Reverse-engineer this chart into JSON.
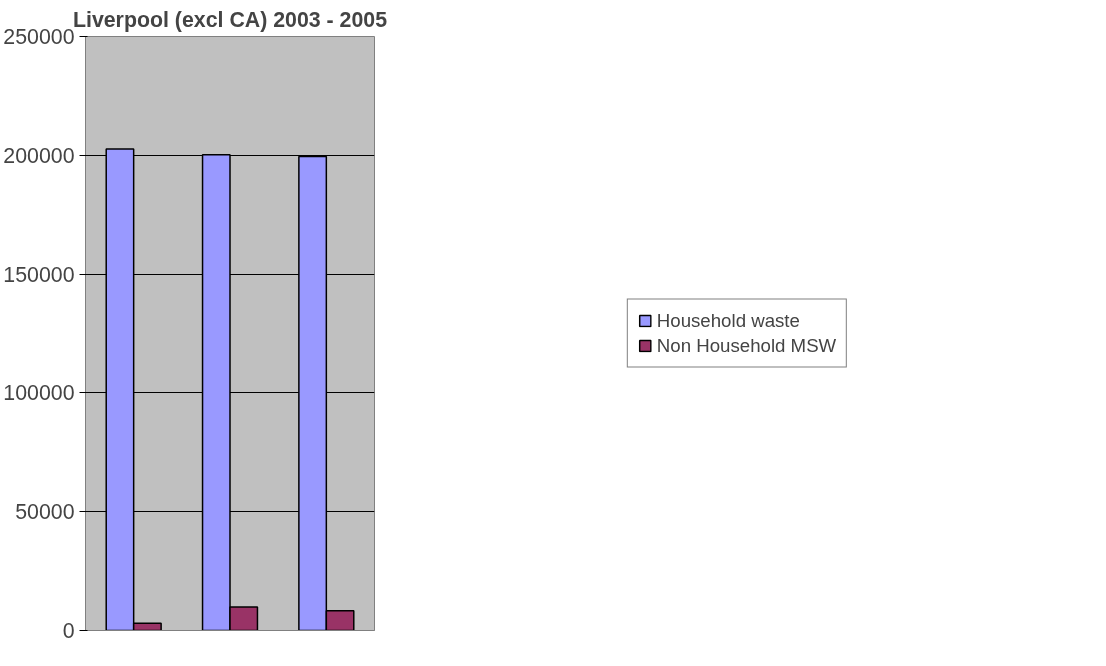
{
  "chart_data": {
    "type": "bar",
    "title": "Liverpool (excl CA) 2003 - 2005",
    "categories": [
      null,
      null,
      null
    ],
    "series": [
      {
        "name": "Household waste",
        "color": "#9999ff",
        "values": [
          202700,
          200200,
          199500
        ]
      },
      {
        "name": "Non Household MSW",
        "color": "#993366",
        "values": [
          3100,
          9900,
          8300
        ]
      }
    ],
    "ylim": [
      0,
      250000
    ],
    "yticks": [
      0,
      50000,
      100000,
      150000,
      200000,
      250000
    ],
    "grid": "y",
    "legend": "right"
  }
}
